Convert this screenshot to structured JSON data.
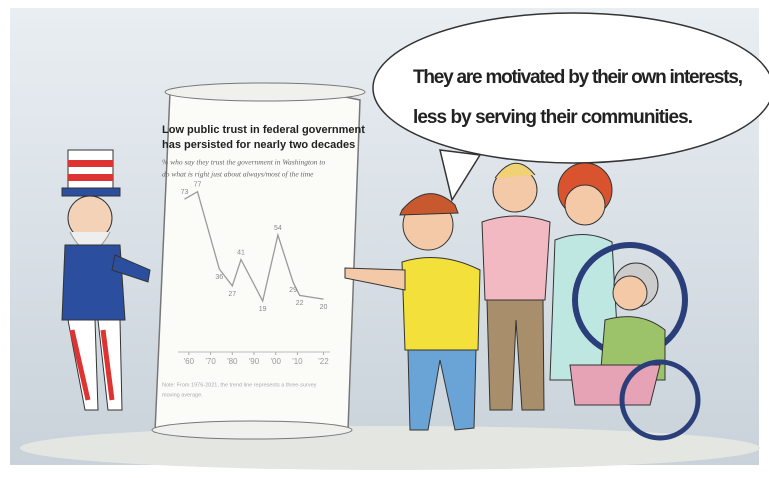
{
  "speech_bubble": {
    "lines": [
      "They are motivated by their own interests,",
      "less by serving their communities."
    ]
  },
  "scroll": {
    "chart": {
      "type": "line",
      "title_lines": [
        "Low public trust in federal government",
        "has persisted for nearly two decades"
      ],
      "subtitle_lines": [
        "% who say they trust the government in Washington to",
        "do what is right just about always/most of the time"
      ],
      "x": [
        1958,
        1964,
        1974,
        1980,
        1984,
        1994,
        2001,
        2008,
        2011,
        2022
      ],
      "values": [
        73,
        77,
        36,
        27,
        41,
        19,
        54,
        29,
        22,
        20
      ],
      "xlim": [
        1955,
        2025
      ],
      "ylim": [
        10,
        80
      ],
      "xticks": [
        {
          "value": 1960,
          "label": "'60"
        },
        {
          "value": 1970,
          "label": "'70"
        },
        {
          "value": 1980,
          "label": "'80"
        },
        {
          "value": 1990,
          "label": "'90"
        },
        {
          "value": 2000,
          "label": "'00"
        },
        {
          "value": 2010,
          "label": "'10"
        },
        {
          "value": 2022,
          "label": "'22"
        }
      ],
      "color": "#9a9a9a",
      "note_lines": [
        "Note: From 1976-2021, the trend line represents a three-survey",
        "moving average."
      ]
    }
  }
}
